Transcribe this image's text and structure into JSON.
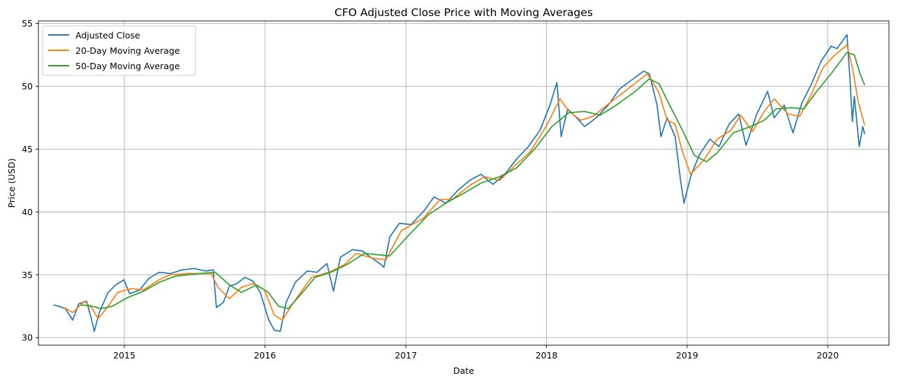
{
  "chart_data": {
    "type": "line",
    "title": "CFO Adjusted Close Price with Moving Averages",
    "xlabel": "Date",
    "ylabel": "Price (USD)",
    "xlim": [
      "2014-05-23",
      "2020-06-08"
    ],
    "ylim": [
      29.4,
      55.2
    ],
    "x_ticks": [
      "2015",
      "2016",
      "2017",
      "2018",
      "2019",
      "2020"
    ],
    "x_tick_dates": [
      "2015-01-01",
      "2016-01-01",
      "2017-01-01",
      "2018-01-01",
      "2019-01-01",
      "2020-01-01"
    ],
    "y_ticks": [
      30,
      35,
      40,
      45,
      50,
      55
    ],
    "grid": true,
    "legend": "upper-left",
    "series": [
      {
        "name": "Adjusted Close",
        "color": "#1f77b4",
        "points": [
          [
            "2014-07-01",
            32.6
          ],
          [
            "2014-07-15",
            32.5
          ],
          [
            "2014-08-01",
            32.3
          ],
          [
            "2014-08-20",
            31.4
          ],
          [
            "2014-09-05",
            32.7
          ],
          [
            "2014-09-25",
            32.9
          ],
          [
            "2014-10-10",
            31.2
          ],
          [
            "2014-10-15",
            30.5
          ],
          [
            "2014-10-28",
            32.0
          ],
          [
            "2014-11-20",
            33.6
          ],
          [
            "2014-12-10",
            34.2
          ],
          [
            "2014-12-31",
            34.6
          ],
          [
            "2015-01-15",
            33.5
          ],
          [
            "2015-02-10",
            33.8
          ],
          [
            "2015-03-05",
            34.7
          ],
          [
            "2015-04-01",
            35.2
          ],
          [
            "2015-05-01",
            35.1
          ],
          [
            "2015-06-01",
            35.4
          ],
          [
            "2015-07-01",
            35.5
          ],
          [
            "2015-08-01",
            35.3
          ],
          [
            "2015-08-20",
            35.4
          ],
          [
            "2015-08-28",
            32.4
          ],
          [
            "2015-09-15",
            32.8
          ],
          [
            "2015-10-01",
            34.1
          ],
          [
            "2015-10-20",
            34.3
          ],
          [
            "2015-11-10",
            34.8
          ],
          [
            "2015-12-01",
            34.5
          ],
          [
            "2015-12-20",
            33.6
          ],
          [
            "2016-01-10",
            31.5
          ],
          [
            "2016-01-25",
            30.6
          ],
          [
            "2016-02-10",
            30.5
          ],
          [
            "2016-02-25",
            32.8
          ],
          [
            "2016-03-20",
            34.4
          ],
          [
            "2016-04-20",
            35.3
          ],
          [
            "2016-05-15",
            35.2
          ],
          [
            "2016-06-10",
            35.9
          ],
          [
            "2016-06-27",
            33.7
          ],
          [
            "2016-07-15",
            36.4
          ],
          [
            "2016-08-15",
            37.0
          ],
          [
            "2016-09-10",
            36.9
          ],
          [
            "2016-10-01",
            36.4
          ],
          [
            "2016-10-25",
            35.9
          ],
          [
            "2016-11-05",
            35.6
          ],
          [
            "2016-11-20",
            38.0
          ],
          [
            "2016-12-15",
            39.1
          ],
          [
            "2017-01-15",
            39.0
          ],
          [
            "2017-02-20",
            40.2
          ],
          [
            "2017-03-15",
            41.2
          ],
          [
            "2017-04-15",
            40.7
          ],
          [
            "2017-05-15",
            41.7
          ],
          [
            "2017-06-15",
            42.5
          ],
          [
            "2017-07-15",
            43.0
          ],
          [
            "2017-08-15",
            42.2
          ],
          [
            "2017-09-15",
            43.0
          ],
          [
            "2017-10-15",
            44.2
          ],
          [
            "2017-11-15",
            45.2
          ],
          [
            "2017-12-15",
            46.5
          ],
          [
            "2018-01-10",
            48.5
          ],
          [
            "2018-01-28",
            50.3
          ],
          [
            "2018-02-08",
            46.0
          ],
          [
            "2018-02-25",
            48.2
          ],
          [
            "2018-03-20",
            47.5
          ],
          [
            "2018-04-10",
            46.8
          ],
          [
            "2018-05-10",
            47.5
          ],
          [
            "2018-06-10",
            48.5
          ],
          [
            "2018-07-10",
            49.8
          ],
          [
            "2018-08-10",
            50.5
          ],
          [
            "2018-09-10",
            51.2
          ],
          [
            "2018-09-25",
            51.0
          ],
          [
            "2018-10-15",
            48.5
          ],
          [
            "2018-10-25",
            46.0
          ],
          [
            "2018-11-10",
            47.5
          ],
          [
            "2018-12-01",
            46.0
          ],
          [
            "2018-12-15",
            42.5
          ],
          [
            "2018-12-24",
            40.7
          ],
          [
            "2019-01-10",
            42.8
          ],
          [
            "2019-02-01",
            44.5
          ],
          [
            "2019-03-01",
            45.8
          ],
          [
            "2019-03-25",
            45.2
          ],
          [
            "2019-04-20",
            47.0
          ],
          [
            "2019-05-15",
            47.8
          ],
          [
            "2019-06-03",
            45.3
          ],
          [
            "2019-07-01",
            47.8
          ],
          [
            "2019-07-29",
            49.6
          ],
          [
            "2019-08-15",
            47.5
          ],
          [
            "2019-09-10",
            48.5
          ],
          [
            "2019-10-03",
            46.3
          ],
          [
            "2019-10-25",
            48.6
          ],
          [
            "2019-11-20",
            50.2
          ],
          [
            "2019-12-15",
            52.0
          ],
          [
            "2020-01-10",
            53.2
          ],
          [
            "2020-01-25",
            53.0
          ],
          [
            "2020-02-20",
            54.1
          ],
          [
            "2020-02-28",
            50.5
          ],
          [
            "2020-03-05",
            47.2
          ],
          [
            "2020-03-10",
            49.2
          ],
          [
            "2020-03-23",
            45.2
          ],
          [
            "2020-04-01",
            46.8
          ],
          [
            "2020-04-06",
            46.2
          ]
        ]
      },
      {
        "name": "20-Day Moving Average",
        "color": "#ff7f0e",
        "points": [
          [
            "2014-07-28",
            32.4
          ],
          [
            "2014-08-20",
            32.0
          ],
          [
            "2014-09-20",
            32.9
          ],
          [
            "2014-10-10",
            32.3
          ],
          [
            "2014-10-25",
            31.5
          ],
          [
            "2014-11-20",
            32.5
          ],
          [
            "2014-12-15",
            33.6
          ],
          [
            "2015-01-20",
            33.9
          ],
          [
            "2015-02-20",
            33.8
          ],
          [
            "2015-04-01",
            34.6
          ],
          [
            "2015-05-01",
            35.0
          ],
          [
            "2015-06-15",
            35.1
          ],
          [
            "2015-08-15",
            35.1
          ],
          [
            "2015-09-01",
            34.0
          ],
          [
            "2015-10-01",
            33.1
          ],
          [
            "2015-11-01",
            34.0
          ],
          [
            "2015-12-01",
            34.3
          ],
          [
            "2015-12-31",
            33.8
          ],
          [
            "2016-01-25",
            31.8
          ],
          [
            "2016-02-15",
            31.4
          ],
          [
            "2016-03-20",
            33.0
          ],
          [
            "2016-05-01",
            34.8
          ],
          [
            "2016-06-15",
            35.2
          ],
          [
            "2016-07-25",
            35.8
          ],
          [
            "2016-08-25",
            36.7
          ],
          [
            "2016-10-10",
            36.3
          ],
          [
            "2016-11-10",
            36.2
          ],
          [
            "2016-12-20",
            38.5
          ],
          [
            "2017-02-15",
            39.5
          ],
          [
            "2017-03-31",
            41.0
          ],
          [
            "2017-05-01",
            41.0
          ],
          [
            "2017-06-20",
            42.2
          ],
          [
            "2017-07-25",
            42.8
          ],
          [
            "2017-09-01",
            42.5
          ],
          [
            "2017-10-15",
            43.8
          ],
          [
            "2017-11-20",
            44.8
          ],
          [
            "2017-12-31",
            46.8
          ],
          [
            "2018-02-05",
            49.0
          ],
          [
            "2018-03-01",
            48.0
          ],
          [
            "2018-03-31",
            47.3
          ],
          [
            "2018-05-01",
            47.6
          ],
          [
            "2018-06-15",
            48.7
          ],
          [
            "2018-08-01",
            49.8
          ],
          [
            "2018-09-20",
            51.0
          ],
          [
            "2018-10-20",
            49.5
          ],
          [
            "2018-11-10",
            47.3
          ],
          [
            "2018-12-01",
            47.0
          ],
          [
            "2018-12-20",
            44.8
          ],
          [
            "2019-01-10",
            43.0
          ],
          [
            "2019-02-15",
            44.2
          ],
          [
            "2019-03-20",
            45.8
          ],
          [
            "2019-04-25",
            46.5
          ],
          [
            "2019-05-20",
            47.7
          ],
          [
            "2019-06-20",
            46.4
          ],
          [
            "2019-07-20",
            48.0
          ],
          [
            "2019-08-15",
            49.0
          ],
          [
            "2019-09-20",
            47.8
          ],
          [
            "2019-10-20",
            47.6
          ],
          [
            "2019-11-20",
            49.4
          ],
          [
            "2019-12-20",
            51.5
          ],
          [
            "2020-01-20",
            52.5
          ],
          [
            "2020-02-20",
            53.3
          ],
          [
            "2020-03-05",
            51.5
          ],
          [
            "2020-03-20",
            48.8
          ],
          [
            "2020-04-06",
            46.9
          ]
        ]
      },
      {
        "name": "50-Day Moving Average",
        "color": "#2ca02c",
        "points": [
          [
            "2014-09-10",
            32.6
          ],
          [
            "2014-10-10",
            32.5
          ],
          [
            "2014-11-01",
            32.3
          ],
          [
            "2014-12-01",
            32.5
          ],
          [
            "2015-01-10",
            33.2
          ],
          [
            "2015-02-20",
            33.7
          ],
          [
            "2015-04-01",
            34.4
          ],
          [
            "2015-05-15",
            34.9
          ],
          [
            "2015-07-15",
            35.1
          ],
          [
            "2015-08-25",
            35.2
          ],
          [
            "2015-10-01",
            34.2
          ],
          [
            "2015-11-01",
            33.6
          ],
          [
            "2015-12-10",
            34.2
          ],
          [
            "2016-01-10",
            33.6
          ],
          [
            "2016-02-05",
            32.5
          ],
          [
            "2016-03-01",
            32.3
          ],
          [
            "2016-04-05",
            33.5
          ],
          [
            "2016-05-10",
            34.8
          ],
          [
            "2016-06-20",
            35.2
          ],
          [
            "2016-07-31",
            35.8
          ],
          [
            "2016-09-15",
            36.7
          ],
          [
            "2016-10-20",
            36.6
          ],
          [
            "2016-11-20",
            36.5
          ],
          [
            "2017-01-10",
            38.2
          ],
          [
            "2017-03-01",
            39.8
          ],
          [
            "2017-04-20",
            40.8
          ],
          [
            "2017-06-01",
            41.5
          ],
          [
            "2017-07-15",
            42.3
          ],
          [
            "2017-09-01",
            42.8
          ],
          [
            "2017-10-15",
            43.5
          ],
          [
            "2017-12-01",
            45.0
          ],
          [
            "2018-01-15",
            46.8
          ],
          [
            "2018-02-28",
            47.9
          ],
          [
            "2018-04-10",
            48.0
          ],
          [
            "2018-05-20",
            47.7
          ],
          [
            "2018-07-01",
            48.5
          ],
          [
            "2018-08-20",
            49.6
          ],
          [
            "2018-09-25",
            50.6
          ],
          [
            "2018-10-20",
            50.2
          ],
          [
            "2018-11-20",
            48.3
          ],
          [
            "2018-12-20",
            46.5
          ],
          [
            "2019-01-20",
            44.5
          ],
          [
            "2019-02-20",
            44.0
          ],
          [
            "2019-03-20",
            44.7
          ],
          [
            "2019-05-01",
            46.3
          ],
          [
            "2019-06-15",
            46.8
          ],
          [
            "2019-07-20",
            47.3
          ],
          [
            "2019-08-20",
            48.2
          ],
          [
            "2019-09-30",
            48.3
          ],
          [
            "2019-10-31",
            48.2
          ],
          [
            "2019-12-01",
            49.5
          ],
          [
            "2020-01-15",
            51.2
          ],
          [
            "2020-02-20",
            52.7
          ],
          [
            "2020-03-10",
            52.5
          ],
          [
            "2020-03-25",
            51.0
          ],
          [
            "2020-04-06",
            50.1
          ]
        ]
      }
    ]
  }
}
